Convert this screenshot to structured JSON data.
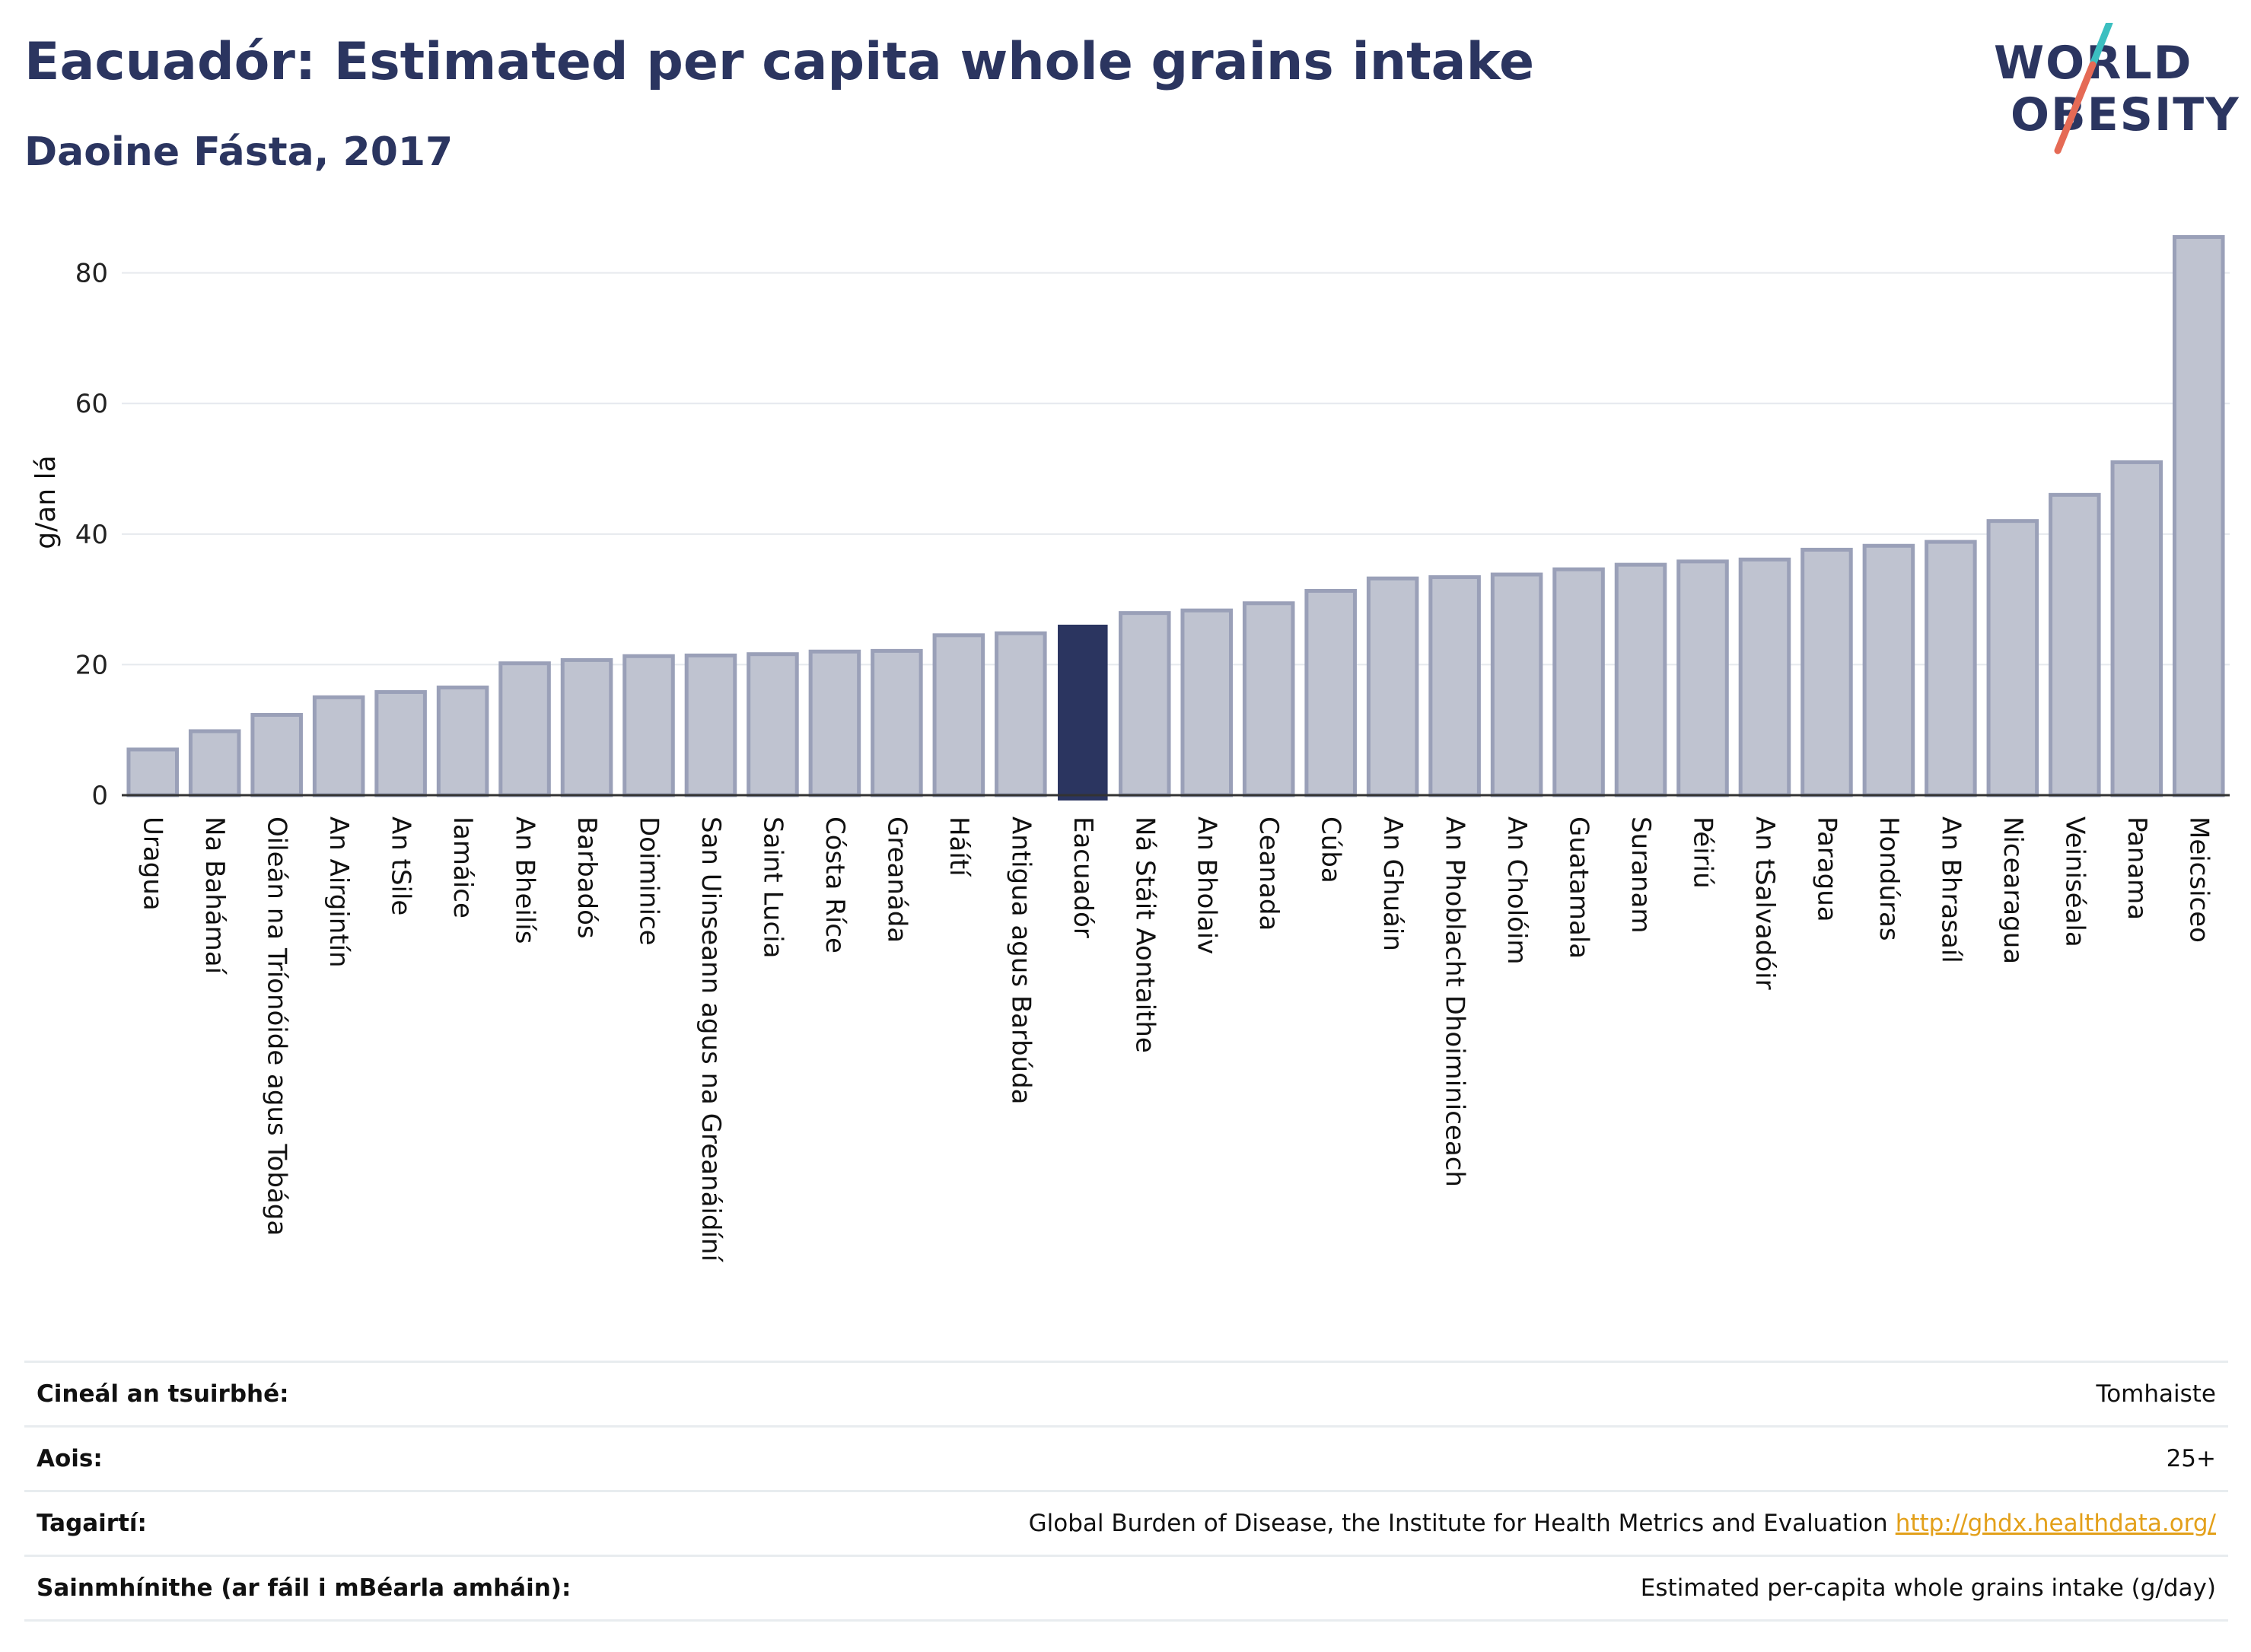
{
  "header": {
    "title": "Eacuadór: Estimated per capita whole grains intake",
    "subtitle": "Daoine Fásta, 2017"
  },
  "logo": {
    "line1": "WORLD",
    "line2": "OBESITY"
  },
  "colors": {
    "highlight": "#2b3560",
    "bar": "#bfc3d0",
    "bar_border": "#9aa0b8",
    "title": "#2b3560",
    "link": "#e3a01a"
  },
  "chart_data": {
    "type": "bar",
    "ylabel": "g/an lá",
    "ylim": [
      0,
      88
    ],
    "yticks": [
      0,
      20,
      40,
      60,
      80
    ],
    "grid": true,
    "highlight": "Eacuadór",
    "categories": [
      "Uragua",
      "Na Bahámaí",
      "Oileán na Tríonóide agus Tobága",
      "An Airgintín",
      "An tSile",
      "Iamáice",
      "An Bheilís",
      "Barbadós",
      "Doiminice",
      "San Uinseann agus na Greanáidíní",
      "Saint Lucia",
      "Cósta Ríce",
      "Greanáda",
      "Háítí",
      "Antigua agus Barbúda",
      "Eacuadór",
      "Ná Stáit Aontaithe",
      "An Bholaiv",
      "Ceanada",
      "Cúba",
      "An Ghuáin",
      "An Phoblacht Dhoiminiceach",
      "An Cholóim",
      "Guatamala",
      "Suranam",
      "Péiriú",
      "An tSalvadóir",
      "Paragua",
      "Hondúras",
      "An Bhrasaíl",
      "Nicearagua",
      "Veiniséala",
      "Panama",
      "Meicsiceo"
    ],
    "values": [
      7.0,
      9.8,
      12.3,
      15.0,
      15.8,
      16.5,
      20.2,
      20.7,
      21.3,
      21.4,
      21.6,
      22.0,
      22.1,
      24.5,
      24.8,
      26.0,
      27.9,
      28.3,
      29.4,
      31.3,
      33.2,
      33.4,
      33.8,
      34.6,
      35.3,
      35.8,
      36.1,
      37.6,
      38.2,
      38.8,
      42.0,
      46.0,
      51.0,
      85.5
    ]
  },
  "info": [
    {
      "key": "Cineál an tsuirbhé:",
      "value": "Tomhaiste"
    },
    {
      "key": "Aois:",
      "value": "25+"
    },
    {
      "key": "Tagairtí:",
      "value": "Global Burden of Disease, the Institute for Health Metrics and Evaluation",
      "link": "http://ghdx.healthdata.org/"
    },
    {
      "key": "Sainmhínithe (ar fáil i mBéarla amháin):",
      "value": "Estimated per-capita whole grains intake (g/day)"
    }
  ]
}
